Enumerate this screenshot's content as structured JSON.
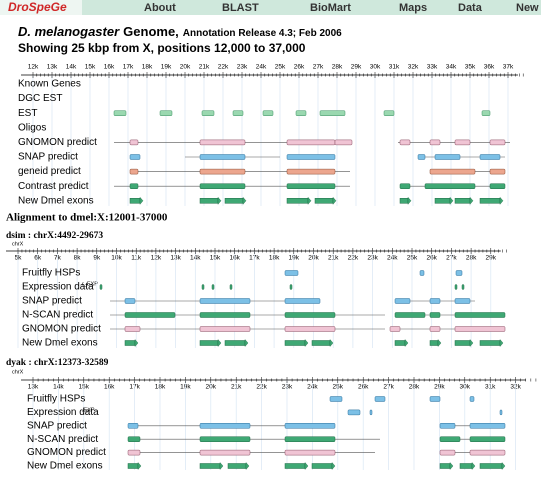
{
  "nav": {
    "brand": "DroSpeGe",
    "items": [
      "About",
      "BLAST",
      "BioMart",
      "Maps",
      "Data",
      "New"
    ]
  },
  "header": {
    "species": "D. melanogaster",
    "genome": "Genome,",
    "release": "Annotation Release 4.3; Feb 2006",
    "showing": "Showing 25 kbp from X, positions 12,000 to 37,000"
  },
  "main_panel": {
    "ruler": [
      "12k",
      "13k",
      "14k",
      "15k",
      "16k",
      "17k",
      "18k",
      "19k",
      "20k",
      "21k",
      "22k",
      "23k",
      "24k",
      "25k",
      "26k",
      "27k",
      "28k",
      "29k",
      "30k",
      "31k",
      "32k",
      "33k",
      "34k",
      "35k",
      "36k",
      "37k"
    ],
    "tracks": [
      "Known Genes",
      "DGC EST",
      "EST",
      "Oligos",
      "GNOMON predict",
      "SNAP predict",
      "geneid predict",
      "Contrast predict",
      "New Dmel exons"
    ]
  },
  "alignment": {
    "title": "Alignment to dmel:X:12001-37000",
    "panels": [
      {
        "label": "dsim : chrX:4492-29673",
        "chrom": "chrX",
        "expression_tag": "r_EXP",
        "ruler": [
          "5k",
          "6k",
          "7k",
          "8k",
          "9k",
          "10k",
          "11k",
          "12k",
          "13k",
          "14k",
          "15k",
          "16k",
          "17k",
          "18k",
          "19k",
          "20k",
          "21k",
          "22k",
          "23k",
          "24k",
          "25k",
          "26k",
          "27k",
          "28k",
          "29k"
        ],
        "tracks": [
          "Fruitfly HSPs",
          "Expression data",
          "SNAP predict",
          "N-SCAN predict",
          "GNOMON predict",
          "New Dmel exons"
        ]
      },
      {
        "label": "dyak : chrX:12373-32589",
        "chrom": "chrX",
        "expression_tag": ",EXP",
        "ruler": [
          "13k",
          "14k",
          "15k",
          "16k",
          "17k",
          "18k",
          "19k",
          "20k",
          "21k",
          "22k",
          "23k",
          "24k",
          "25k",
          "26k",
          "27k",
          "28k",
          "29k",
          "30k",
          "31k",
          "32k"
        ],
        "tracks": [
          "Fruitfly HSPs",
          "Expression data",
          "SNAP predict",
          "N-SCAN predict",
          "GNOMON predict",
          "New Dmel exons"
        ]
      }
    ]
  }
}
